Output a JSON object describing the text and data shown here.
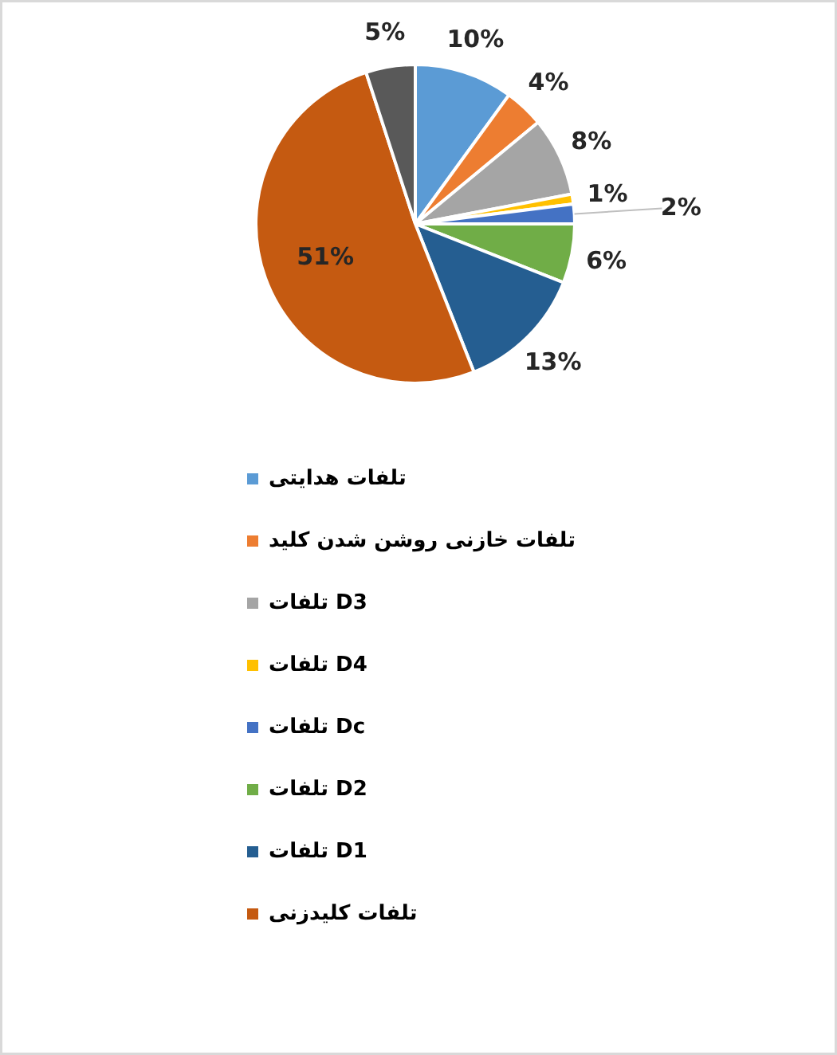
{
  "chart_data": {
    "type": "pie",
    "categories": [
      "تلفات هدایتی",
      "تلفات خازنی روشن شدن کلید",
      "تلفات D3",
      "تلفات D4",
      "تلفات Dc",
      "تلفات D2",
      "تلفات D1",
      "تلفات کلیدزنی",
      null
    ],
    "values": [
      10,
      4,
      8,
      1,
      2,
      6,
      13,
      51,
      5
    ],
    "value_labels": [
      "10%",
      "4%",
      "8%",
      "1%",
      "2%",
      "6%",
      "13%",
      "51%",
      "5%"
    ],
    "colors": [
      "#5b9bd5",
      "#ed7d31",
      "#a5a5a5",
      "#ffc000",
      "#4472c4",
      "#70ad47",
      "#255e91",
      "#c55a11",
      "#595959"
    ],
    "legend": "bottom"
  }
}
